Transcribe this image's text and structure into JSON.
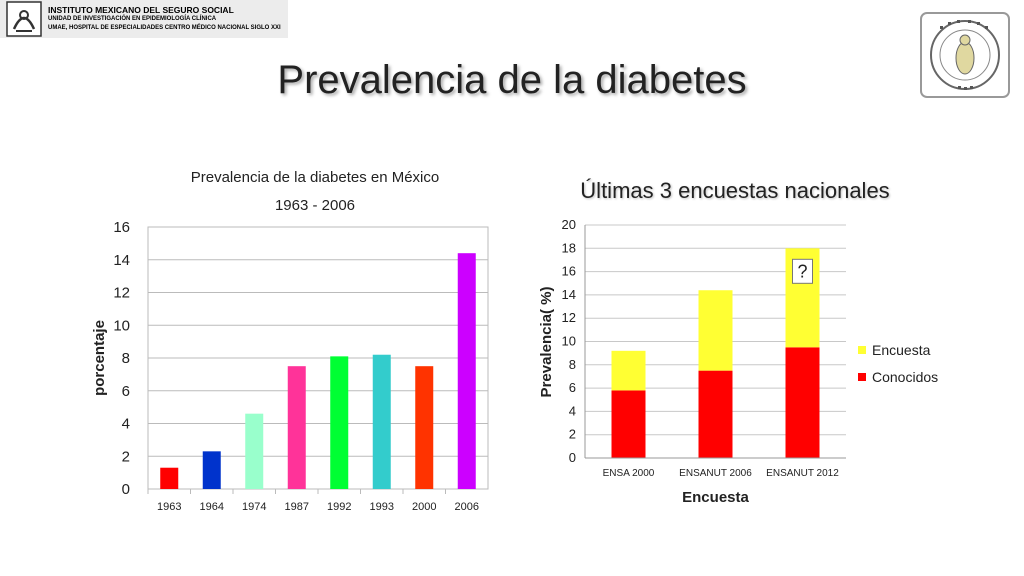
{
  "header": {
    "line1": "INSTITUTO MEXICANO DEL SEGURO SOCIAL",
    "line2": "UNIDAD DE INVESTIGACIÓN EN EPIDEMIOLOGÍA CLÍNICA",
    "line3": "UMAE, HOSPITAL DE ESPECIALIDADES CENTRO MÉDICO NACIONAL SIGLO XXI"
  },
  "slide_title": "Prevalencia de la diabetes",
  "academy_logo_text": "ACADEMIA NACIONAL DE MEDICINA · MÉXICO",
  "chart_data": [
    {
      "type": "bar",
      "title": "Prevalencia de la diabetes en México",
      "subtitle": "1963 - 2006",
      "xlabel": "",
      "ylabel": "porcentaje",
      "ylim": [
        0,
        16
      ],
      "yticks": [
        0,
        2,
        4,
        6,
        8,
        10,
        12,
        14,
        16
      ],
      "grid": true,
      "categories": [
        "1963",
        "1964",
        "1974",
        "1987",
        "1992",
        "1993",
        "2000",
        "2006"
      ],
      "values": [
        1.3,
        2.3,
        4.6,
        7.5,
        8.1,
        8.2,
        7.5,
        14.4
      ],
      "colors": [
        "#ff0000",
        "#0033cc",
        "#99ffcc",
        "#ff3399",
        "#00ff33",
        "#33cccc",
        "#ff3300",
        "#cc00ff"
      ]
    },
    {
      "type": "bar",
      "stacked": true,
      "title": "Últimas 3 encuestas nacionales",
      "xlabel": "Encuesta",
      "ylabel": "Prevalencia( %)",
      "ylim": [
        0,
        20
      ],
      "yticks": [
        0,
        2,
        4,
        6,
        8,
        10,
        12,
        14,
        16,
        18,
        20
      ],
      "grid": true,
      "legend": "right",
      "categories": [
        "ENSA 2000",
        "ENSANUT 2006",
        "ENSANUT 2012"
      ],
      "series": [
        {
          "name": "Conocidos",
          "color": "#ff0000",
          "values": [
            5.8,
            7.5,
            9.5
          ]
        },
        {
          "name": "Encuesta",
          "color": "#ffff33",
          "values": [
            3.4,
            6.9,
            8.5
          ]
        }
      ],
      "annotations": [
        {
          "category": "ENSANUT 2012",
          "text": "?"
        }
      ]
    }
  ]
}
